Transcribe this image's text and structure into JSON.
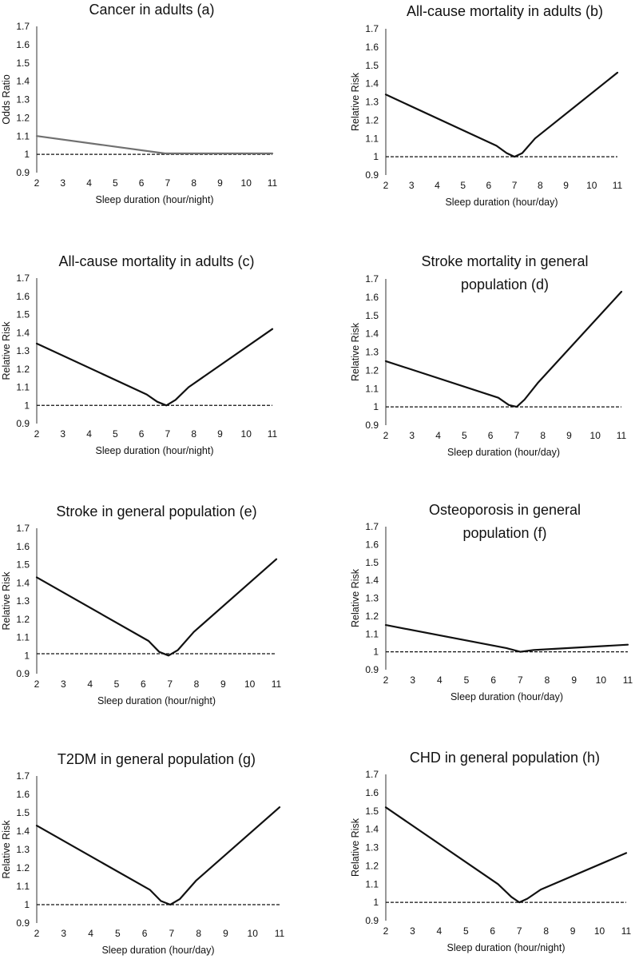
{
  "chart_data": [
    {
      "type": "line",
      "title_lines": [
        "Cancer in adults (a)"
      ],
      "xlabel": "Sleep duration (hour/night)",
      "ylabel": "Odds Ratio",
      "xlim": [
        2,
        11
      ],
      "ylim": [
        0.9,
        1.7
      ],
      "xticks": [
        2,
        3,
        4,
        5,
        6,
        7,
        8,
        9,
        10,
        11
      ],
      "yticks": [
        "0.9",
        "1",
        "1.1",
        "1.2",
        "1.3",
        "1.4",
        "1.5",
        "1.6",
        "1.7"
      ],
      "series": [
        {
          "color": "#707070",
          "x": [
            2,
            6.9,
            11
          ],
          "y": [
            1.1,
            1.005,
            1.005
          ]
        }
      ],
      "reference_line": 1.0
    },
    {
      "type": "line",
      "title_lines": [
        "All-cause mortality in adults (b)"
      ],
      "xlabel": "Sleep duration (hour/day)",
      "ylabel": "Relative Risk",
      "xlim": [
        2,
        11
      ],
      "ylim": [
        0.9,
        1.7
      ],
      "xticks": [
        2,
        3,
        4,
        5,
        6,
        7,
        8,
        9,
        10,
        11
      ],
      "yticks": [
        "0.9",
        "1",
        "1.1",
        "1.2",
        "1.3",
        "1.4",
        "1.5",
        "1.6",
        "1.7"
      ],
      "series": [
        {
          "color": "#111111",
          "x": [
            2,
            6.3,
            6.7,
            7,
            7.3,
            7.8,
            11
          ],
          "y": [
            1.34,
            1.06,
            1.02,
            1.0,
            1.02,
            1.1,
            1.46
          ]
        }
      ],
      "reference_line": 1.0
    },
    {
      "type": "line",
      "title_lines": [
        "All-cause mortality in adults (c)"
      ],
      "xlabel": "Sleep duration (hour/night)",
      "ylabel": "Relative Risk",
      "xlim": [
        2,
        11
      ],
      "ylim": [
        0.9,
        1.7
      ],
      "xticks": [
        2,
        3,
        4,
        5,
        6,
        7,
        8,
        9,
        10,
        11
      ],
      "yticks": [
        "0.9",
        "1",
        "1.1",
        "1.2",
        "1.3",
        "1.4",
        "1.5",
        "1.6",
        "1.7"
      ],
      "series": [
        {
          "color": "#111111",
          "x": [
            2,
            6.2,
            6.6,
            6.95,
            7.3,
            7.8,
            11
          ],
          "y": [
            1.34,
            1.06,
            1.02,
            1.0,
            1.03,
            1.1,
            1.42
          ]
        }
      ],
      "reference_line": 1.0
    },
    {
      "type": "line",
      "title_lines": [
        "Stroke mortality in general",
        "population (d)"
      ],
      "xlabel": "Sleep duration (hour/day)",
      "ylabel": "Relative Risk",
      "xlim": [
        2,
        11
      ],
      "ylim": [
        0.9,
        1.7
      ],
      "xticks": [
        2,
        3,
        4,
        5,
        6,
        7,
        8,
        9,
        10,
        11
      ],
      "yticks": [
        "0.9",
        "1",
        "1.1",
        "1.2",
        "1.3",
        "1.4",
        "1.5",
        "1.6",
        "1.7"
      ],
      "series": [
        {
          "color": "#111111",
          "x": [
            2,
            6.3,
            6.7,
            7,
            7.3,
            7.8,
            11
          ],
          "y": [
            1.25,
            1.05,
            1.01,
            1.0,
            1.04,
            1.13,
            1.63
          ]
        }
      ],
      "reference_line": 1.0
    },
    {
      "type": "line",
      "title_lines": [
        "Stroke in general population (e)"
      ],
      "xlabel": "Sleep duration (hour/night)",
      "ylabel": "Relative Risk",
      "xlim": [
        2,
        11
      ],
      "ylim": [
        0.9,
        1.7
      ],
      "xticks": [
        2,
        3,
        4,
        5,
        6,
        7,
        8,
        9,
        10,
        11
      ],
      "yticks": [
        "0.9",
        "1",
        "1.1",
        "1.2",
        "1.3",
        "1.4",
        "1.5",
        "1.6",
        "1.7"
      ],
      "series": [
        {
          "color": "#111111",
          "x": [
            2,
            6.2,
            6.6,
            6.95,
            7.3,
            7.9,
            11
          ],
          "y": [
            1.43,
            1.08,
            1.02,
            1.0,
            1.03,
            1.13,
            1.53
          ]
        }
      ],
      "reference_line": 1.01
    },
    {
      "type": "line",
      "title_lines": [
        "Osteoporosis in general",
        "population (f)"
      ],
      "xlabel": "Sleep duration (hour/day)",
      "ylabel": "Relative Risk",
      "xlim": [
        2,
        11
      ],
      "ylim": [
        0.9,
        1.7
      ],
      "xticks": [
        2,
        3,
        4,
        5,
        6,
        7,
        8,
        9,
        10,
        11
      ],
      "yticks": [
        "0.9",
        "1",
        "1.1",
        "1.2",
        "1.3",
        "1.4",
        "1.5",
        "1.6",
        "1.7"
      ],
      "series": [
        {
          "color": "#111111",
          "x": [
            2,
            6.5,
            7,
            7.5,
            11
          ],
          "y": [
            1.15,
            1.02,
            1.0,
            1.01,
            1.04
          ]
        }
      ],
      "reference_line": 1.0
    },
    {
      "type": "line",
      "title_lines": [
        "T2DM in general population (g)"
      ],
      "xlabel": "Sleep duration (hour/day)",
      "ylabel": "Relative  Risk",
      "xlim": [
        2,
        11
      ],
      "ylim": [
        0.9,
        1.7
      ],
      "xticks": [
        2,
        3,
        4,
        5,
        6,
        7,
        8,
        9,
        10,
        11
      ],
      "yticks": [
        "0.9",
        "1",
        "1.1",
        "1.2",
        "1.3",
        "1.4",
        "1.5",
        "1.6",
        "1.7"
      ],
      "series": [
        {
          "color": "#111111",
          "x": [
            2,
            6.2,
            6.6,
            6.95,
            7.3,
            7.9,
            11
          ],
          "y": [
            1.43,
            1.08,
            1.02,
            1.0,
            1.03,
            1.13,
            1.53
          ]
        }
      ],
      "reference_line": 1.0
    },
    {
      "type": "line",
      "title_lines": [
        "CHD in general population (h)"
      ],
      "xlabel": "Sleep duration (hour/night)",
      "ylabel": "Relative Risk",
      "xlim": [
        2,
        11
      ],
      "ylim": [
        0.9,
        1.7
      ],
      "xticks": [
        2,
        3,
        4,
        5,
        6,
        7,
        8,
        9,
        10,
        11
      ],
      "yticks": [
        "0.9",
        "1",
        "1.1",
        "1.2",
        "1.3",
        "1.4",
        "1.5",
        "1.6",
        "1.7"
      ],
      "series": [
        {
          "color": "#111111",
          "x": [
            2,
            6.2,
            6.7,
            7.0,
            7.3,
            7.8,
            11
          ],
          "y": [
            1.52,
            1.1,
            1.03,
            1.0,
            1.02,
            1.07,
            1.27
          ]
        }
      ],
      "reference_line": 1.0
    }
  ]
}
